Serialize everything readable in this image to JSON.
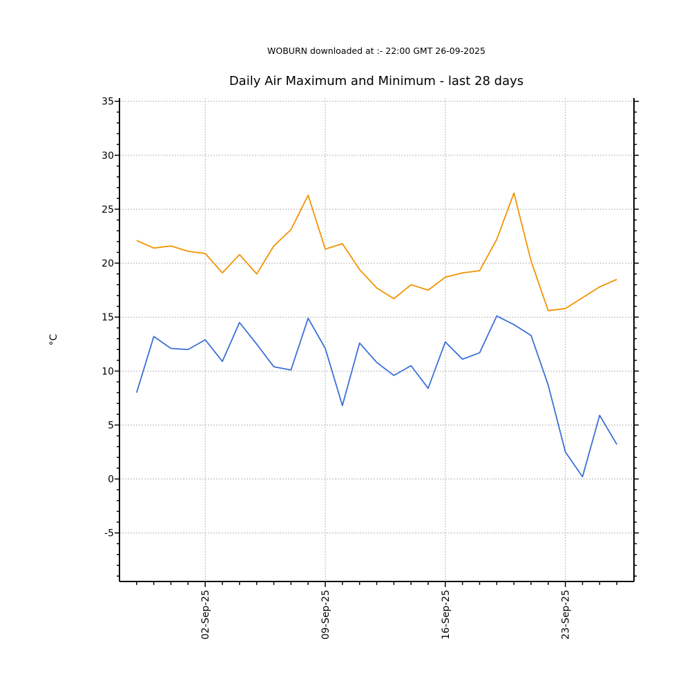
{
  "header": {
    "subtitle": "WOBURN downloaded at :- 22:00 GMT 26-09-2025",
    "title": "Daily Air Maximum and Minimum - last 28 days"
  },
  "chart_data": {
    "type": "line",
    "title": "Daily Air Maximum and Minimum - last 28 days",
    "subtitle": "WOBURN downloaded at :- 22:00 GMT 26-09-2025",
    "xlabel": "",
    "ylabel": "°C",
    "ylim": [
      -9.5,
      35.3
    ],
    "y_ticks": [
      -5,
      0,
      5,
      10,
      15,
      20,
      25,
      30,
      35
    ],
    "x_range": [
      "2025-08-28",
      "2025-09-27"
    ],
    "x_tick_labels": [
      {
        "date": "2025-09-02",
        "label": "02-Sep-25"
      },
      {
        "date": "2025-09-09",
        "label": "09-Sep-25"
      },
      {
        "date": "2025-09-16",
        "label": "16-Sep-25"
      },
      {
        "date": "2025-09-23",
        "label": "23-Sep-25"
      }
    ],
    "grid": true,
    "x": [
      "2025-08-29",
      "2025-08-30",
      "2025-08-31",
      "2025-09-01",
      "2025-09-02",
      "2025-09-03",
      "2025-09-04",
      "2025-09-05",
      "2025-09-06",
      "2025-09-07",
      "2025-09-08",
      "2025-09-09",
      "2025-09-10",
      "2025-09-11",
      "2025-09-12",
      "2025-09-13",
      "2025-09-14",
      "2025-09-15",
      "2025-09-16",
      "2025-09-17",
      "2025-09-18",
      "2025-09-19",
      "2025-09-20",
      "2025-09-21",
      "2025-09-22",
      "2025-09-23",
      "2025-09-24",
      "2025-09-25",
      "2025-09-26"
    ],
    "series": [
      {
        "color": "#f39200",
        "values": [
          22.1,
          21.4,
          21.6,
          21.1,
          20.9,
          19.1,
          20.8,
          19.0,
          21.6,
          23.1,
          26.3,
          21.3,
          21.8,
          19.4,
          17.7,
          16.7,
          18.0,
          17.5,
          18.7,
          19.1,
          19.3,
          22.2,
          26.5,
          20.2,
          15.6,
          15.8,
          16.8,
          17.8,
          18.5
        ]
      },
      {
        "color": "#3a6fd8",
        "values": [
          8.0,
          13.2,
          12.1,
          12.0,
          12.9,
          10.9,
          14.5,
          12.5,
          10.4,
          10.1,
          14.9,
          12.1,
          6.8,
          12.6,
          10.8,
          9.6,
          10.5,
          8.4,
          12.7,
          11.1,
          11.7,
          15.1,
          14.3,
          13.3,
          8.7,
          2.5,
          0.2,
          5.9,
          3.2
        ]
      }
    ]
  }
}
